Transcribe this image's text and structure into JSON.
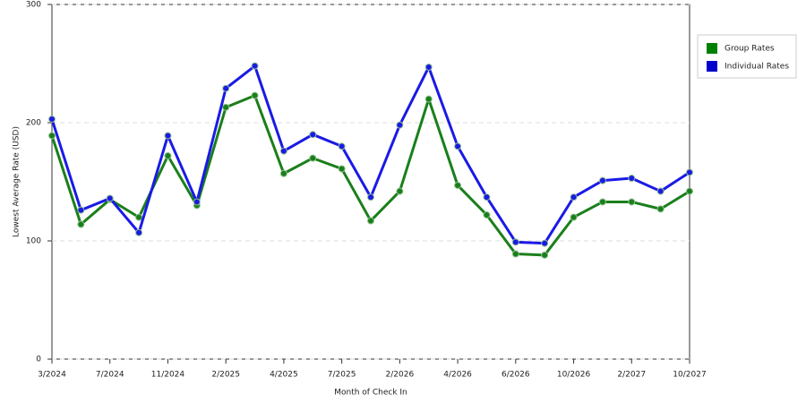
{
  "chart_data": {
    "type": "line",
    "x_label": "Month of Check In",
    "y_label": "Lowest Average Rate (USD)",
    "categories": [
      "3/2024",
      null,
      "7/2024",
      null,
      "11/2024",
      null,
      "2/2025",
      null,
      "4/2025",
      null,
      "7/2025",
      null,
      "2/2026",
      null,
      "4/2026",
      null,
      "6/2026",
      null,
      "10/2026",
      null,
      "2/2027",
      null,
      "10/2027"
    ],
    "series": [
      {
        "name": "Group Rates",
        "color": "#1a7f1a",
        "legend_color": "#008000",
        "values": [
          189,
          114,
          135,
          120,
          172,
          130,
          213,
          223,
          157,
          170,
          161,
          117,
          142,
          220,
          147,
          122,
          89,
          88,
          120,
          133,
          133,
          127,
          142
        ]
      },
      {
        "name": "Individual Rates",
        "color": "#1a1ae6",
        "legend_color": "#0000cc",
        "values": [
          203,
          126,
          136,
          107,
          189,
          133,
          229,
          248,
          176,
          190,
          180,
          137,
          198,
          247,
          180,
          137,
          99,
          98,
          137,
          151,
          153,
          142,
          158
        ]
      }
    ],
    "ylim": [
      0,
      300
    ],
    "yticks": [
      0,
      100,
      200,
      300
    ],
    "grid": true
  }
}
